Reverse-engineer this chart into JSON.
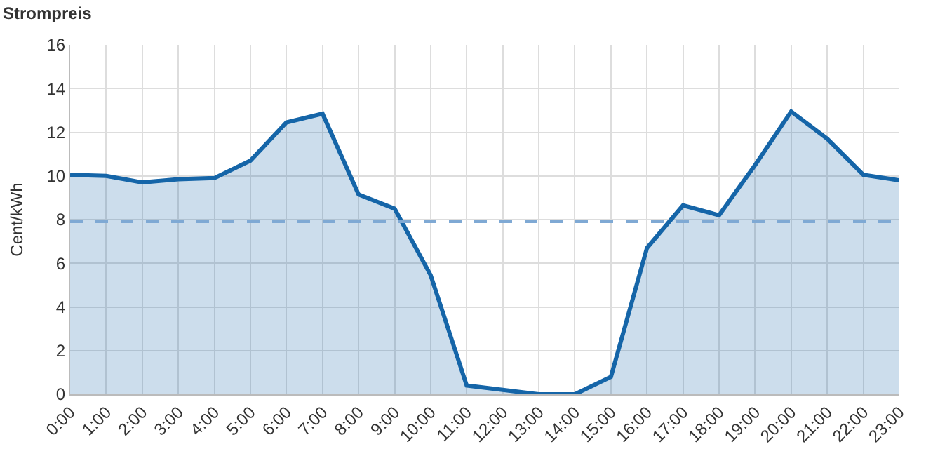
{
  "chart_data": {
    "type": "area",
    "title": "Strompreis",
    "ylabel": "Cent/kWh",
    "categories": [
      "0:00",
      "1:00",
      "2:00",
      "3:00",
      "4:00",
      "5:00",
      "6:00",
      "7:00",
      "8:00",
      "9:00",
      "10:00",
      "11:00",
      "12:00",
      "13:00",
      "14:00",
      "15:00",
      "16:00",
      "17:00",
      "18:00",
      "19:00",
      "20:00",
      "21:00",
      "22:00",
      "23:00"
    ],
    "series": [
      {
        "color": "#1565a8",
        "values": [
          10.05,
          10.0,
          9.7,
          9.85,
          9.9,
          10.7,
          12.45,
          12.85,
          9.15,
          8.5,
          5.45,
          0.4,
          0.2,
          0,
          0,
          0.8,
          6.7,
          8.65,
          8.2,
          10.5,
          12.95,
          11.7,
          10.05,
          9.8
        ]
      }
    ],
    "ylim": [
      0,
      16
    ],
    "yticks": [
      0,
      2,
      4,
      6,
      8,
      10,
      12,
      14,
      16
    ],
    "grid": true,
    "marker": "none",
    "line_style": "solid",
    "ref_lines": [
      {
        "axis": "y",
        "value": 7.9,
        "color": "#7fa9d4",
        "line_style": "dashed"
      }
    ]
  }
}
